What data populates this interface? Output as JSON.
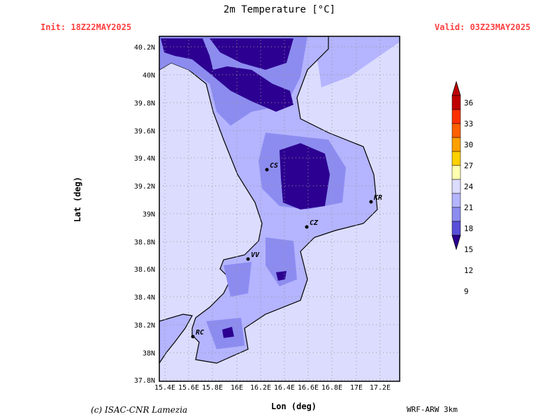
{
  "header": {
    "title": "2m Temperature [°C]",
    "init": "Init: 18Z22MAY2025",
    "valid": "Valid: 03Z23MAY2025"
  },
  "axes": {
    "xlabel": "Lon (deg)",
    "ylabel": "Lat (deg)",
    "lon_ticks": [
      "15.4E",
      "15.6E",
      "15.8E",
      "16E",
      "16.2E",
      "16.4E",
      "16.6E",
      "16.8E",
      "17E",
      "17.2E"
    ],
    "lat_ticks": [
      "40.2N",
      "40N",
      "39.8N",
      "39.6N",
      "39.4N",
      "39.2N",
      "39N",
      "38.8N",
      "38.6N",
      "38.4N",
      "38.2N",
      "38N",
      "37.8N"
    ]
  },
  "cities": [
    {
      "code": "CS",
      "lon": 16.25,
      "lat": 39.3
    },
    {
      "code": "KR",
      "lon": 17.12,
      "lat": 39.08
    },
    {
      "code": "CZ",
      "lon": 16.6,
      "lat": 38.9
    },
    {
      "code": "VV",
      "lon": 16.1,
      "lat": 38.67
    },
    {
      "code": "RC",
      "lon": 15.65,
      "lat": 38.11
    }
  ],
  "colorbar": {
    "labels": [
      "36",
      "33",
      "30",
      "27",
      "24",
      "21",
      "18",
      "15",
      "12",
      "9"
    ],
    "colors": [
      "#c00000",
      "#ff3000",
      "#ff6000",
      "#ffa000",
      "#ffd000",
      "#ffffb0",
      "#dcdcff",
      "#b4b4ff",
      "#8c8cf0",
      "#5a50d8",
      "#2c0090"
    ]
  },
  "footer": {
    "credit": "(c) ISAC-CNR Lamezia",
    "model": "WRF-ARW 3km"
  }
}
